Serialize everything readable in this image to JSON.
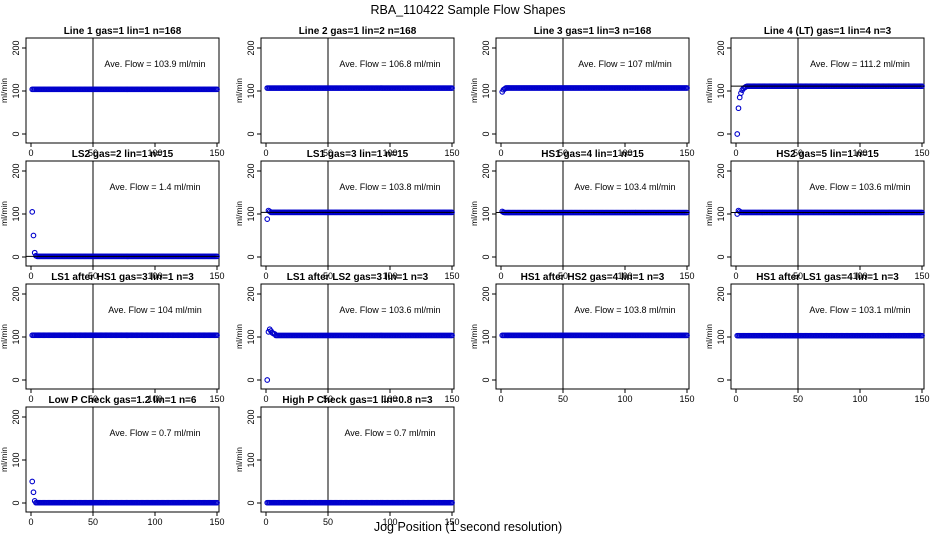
{
  "title": "RBA_110422  Sample Flow Shapes",
  "xlabel": "Jog Position (1 second resolution)",
  "chart_data": [
    {
      "type": "scatter",
      "title": "Line 1 gas=1 lin=1 n=168",
      "ylabel": "ml/min",
      "annotation": "Ave. Flow =  103.9  ml/min",
      "xlim": [
        0,
        150
      ],
      "ylim": [
        0,
        200
      ],
      "xticks": [
        0,
        50,
        100,
        150
      ],
      "yticks": [
        0,
        100,
        200
      ],
      "vline": 50,
      "hlines": [],
      "series": {
        "start": [],
        "steady": 103.9,
        "xmax": 150
      }
    },
    {
      "type": "scatter",
      "title": "Line 2 gas=1 lin=2 n=168",
      "ylabel": "ml/min",
      "annotation": "Ave. Flow =  106.8  ml/min",
      "xlim": [
        0,
        150
      ],
      "ylim": [
        0,
        200
      ],
      "xticks": [
        0,
        50,
        100,
        150
      ],
      "yticks": [
        0,
        100,
        200
      ],
      "vline": 50,
      "hlines": [],
      "series": {
        "start": [],
        "steady": 106.8,
        "xmax": 150
      }
    },
    {
      "type": "scatter",
      "title": "Line 3 gas=1 lin=3 n=168",
      "ylabel": "ml/min",
      "annotation": "Ave. Flow =  107  ml/min",
      "xlim": [
        0,
        150
      ],
      "ylim": [
        0,
        200
      ],
      "xticks": [
        0,
        50,
        100,
        150
      ],
      "yticks": [
        0,
        100,
        200
      ],
      "vline": 50,
      "hlines": [],
      "series": {
        "start": [
          [
            1,
            98
          ],
          [
            2,
            103
          ],
          [
            3,
            105
          ]
        ],
        "steady": 107,
        "xmax": 150
      }
    },
    {
      "type": "scatter",
      "title": "Line 4 (LT) gas=1 lin=4 n=3",
      "ylabel": "ml/min",
      "annotation": "Ave. Flow =  111.2  ml/min",
      "xlim": [
        0,
        150
      ],
      "ylim": [
        0,
        200
      ],
      "xticks": [
        0,
        50,
        100,
        150
      ],
      "yticks": [
        0,
        100,
        200
      ],
      "vline": 50,
      "hlines": [
        111.2
      ],
      "series": {
        "start": [
          [
            1,
            0
          ],
          [
            2,
            60
          ],
          [
            3,
            85
          ],
          [
            4,
            95
          ],
          [
            5,
            102
          ],
          [
            6,
            106
          ],
          [
            7,
            108
          ],
          [
            8,
            110
          ]
        ],
        "steady": 111.2,
        "xmax": 150
      }
    },
    {
      "type": "scatter",
      "title": "LS2 gas=2 lin=1 n=15",
      "ylabel": "ml/min",
      "annotation": "Ave. Flow =  1.4  ml/min",
      "xlim": [
        0,
        150
      ],
      "ylim": [
        0,
        200
      ],
      "xticks": [
        0,
        50,
        100,
        150
      ],
      "yticks": [
        0,
        100,
        200
      ],
      "vline": 50,
      "hlines": [
        1.4
      ],
      "series": {
        "start": [
          [
            1,
            105
          ],
          [
            2,
            50
          ],
          [
            3,
            10
          ],
          [
            4,
            3
          ]
        ],
        "steady": 1.4,
        "xmax": 150
      }
    },
    {
      "type": "scatter",
      "title": "LS1 gas=3 lin=1 n=15",
      "ylabel": "ml/min",
      "annotation": "Ave. Flow =  103.8  ml/min",
      "xlim": [
        0,
        150
      ],
      "ylim": [
        0,
        200
      ],
      "xticks": [
        0,
        50,
        100,
        150
      ],
      "yticks": [
        0,
        100,
        200
      ],
      "vline": 50,
      "hlines": [
        103.8
      ],
      "series": {
        "start": [
          [
            1,
            88
          ],
          [
            2,
            108
          ],
          [
            3,
            106
          ]
        ],
        "steady": 103.8,
        "xmax": 150
      }
    },
    {
      "type": "scatter",
      "title": "HS1 gas=4 lin=1 n=15",
      "ylabel": "ml/min",
      "annotation": "Ave. Flow =  103.4  ml/min",
      "xlim": [
        0,
        150
      ],
      "ylim": [
        0,
        200
      ],
      "xticks": [
        0,
        50,
        100,
        150
      ],
      "yticks": [
        0,
        100,
        200
      ],
      "vline": 50,
      "hlines": [
        103.4
      ],
      "series": {
        "start": [
          [
            1,
            106
          ],
          [
            2,
            104
          ]
        ],
        "steady": 103.4,
        "xmax": 150
      }
    },
    {
      "type": "scatter",
      "title": "HS2 gas=5 lin=1 n=15",
      "ylabel": "ml/min",
      "annotation": "Ave. Flow =  103.6  ml/min",
      "xlim": [
        0,
        150
      ],
      "ylim": [
        0,
        200
      ],
      "xticks": [
        0,
        50,
        100,
        150
      ],
      "yticks": [
        0,
        100,
        200
      ],
      "vline": 50,
      "hlines": [
        103.6
      ],
      "series": {
        "start": [
          [
            1,
            100
          ],
          [
            2,
            108
          ],
          [
            3,
            106
          ]
        ],
        "steady": 103.6,
        "xmax": 150
      }
    },
    {
      "type": "scatter",
      "title": "LS1 after HS1 gas=3 lin=1 n=3",
      "ylabel": "ml/min",
      "annotation": "Ave. Flow =  104  ml/min",
      "xlim": [
        0,
        150
      ],
      "ylim": [
        0,
        200
      ],
      "xticks": [
        0,
        50,
        100,
        150
      ],
      "yticks": [
        0,
        100,
        200
      ],
      "vline": 50,
      "hlines": [],
      "series": {
        "start": [],
        "steady": 104,
        "xmax": 150
      }
    },
    {
      "type": "scatter",
      "title": "LS1 after LS2 gas=3 lin=1 n=3",
      "ylabel": "ml/min",
      "annotation": "Ave. Flow =  103.6  ml/min",
      "xlim": [
        0,
        150
      ],
      "ylim": [
        0,
        200
      ],
      "xticks": [
        0,
        50,
        100,
        150
      ],
      "yticks": [
        0,
        100,
        200
      ],
      "vline": 50,
      "hlines": [],
      "series": {
        "start": [
          [
            1,
            0
          ],
          [
            2,
            112
          ],
          [
            3,
            118
          ],
          [
            4,
            114
          ],
          [
            5,
            110
          ],
          [
            6,
            108
          ],
          [
            7,
            107
          ]
        ],
        "steady": 103.6,
        "xmax": 150
      }
    },
    {
      "type": "scatter",
      "title": "HS1 after HS2 gas=4 lin=1 n=3",
      "ylabel": "ml/min",
      "annotation": "Ave. Flow =  103.8  ml/min",
      "xlim": [
        0,
        150
      ],
      "ylim": [
        0,
        200
      ],
      "xticks": [
        0,
        50,
        100,
        150
      ],
      "yticks": [
        0,
        100,
        200
      ],
      "vline": 50,
      "hlines": [],
      "series": {
        "start": [],
        "steady": 103.8,
        "xmax": 150
      }
    },
    {
      "type": "scatter",
      "title": "HS1 after LS1 gas=4 lin=1 n=3",
      "ylabel": "ml/min",
      "annotation": "Ave. Flow =  103.1  ml/min",
      "xlim": [
        0,
        150
      ],
      "ylim": [
        0,
        200
      ],
      "xticks": [
        0,
        50,
        100,
        150
      ],
      "yticks": [
        0,
        100,
        200
      ],
      "vline": 50,
      "hlines": [],
      "series": {
        "start": [],
        "steady": 103.1,
        "xmax": 150
      }
    },
    {
      "type": "scatter",
      "title": "Low P Check gas=1.2 lin=1 n=6",
      "ylabel": "ml/min",
      "annotation": "Ave. Flow =  0.7  ml/min",
      "xlim": [
        0,
        150
      ],
      "ylim": [
        0,
        200
      ],
      "xticks": [
        0,
        50,
        100,
        150
      ],
      "yticks": [
        0,
        100,
        200
      ],
      "vline": 50,
      "hlines": [],
      "series": {
        "start": [
          [
            1,
            50
          ],
          [
            2,
            25
          ],
          [
            3,
            5
          ]
        ],
        "steady": 0.7,
        "xmax": 150
      }
    },
    {
      "type": "scatter",
      "title": "High P Check gas=1 lin=0.8 n=3",
      "ylabel": "ml/min",
      "annotation": "Ave. Flow =  0.7  ml/min",
      "xlim": [
        0,
        150
      ],
      "ylim": [
        0,
        200
      ],
      "xticks": [
        0,
        50,
        100,
        150
      ],
      "yticks": [
        0,
        100,
        200
      ],
      "vline": 50,
      "hlines": [],
      "series": {
        "start": [],
        "steady": 0.7,
        "xmax": 150
      }
    }
  ]
}
